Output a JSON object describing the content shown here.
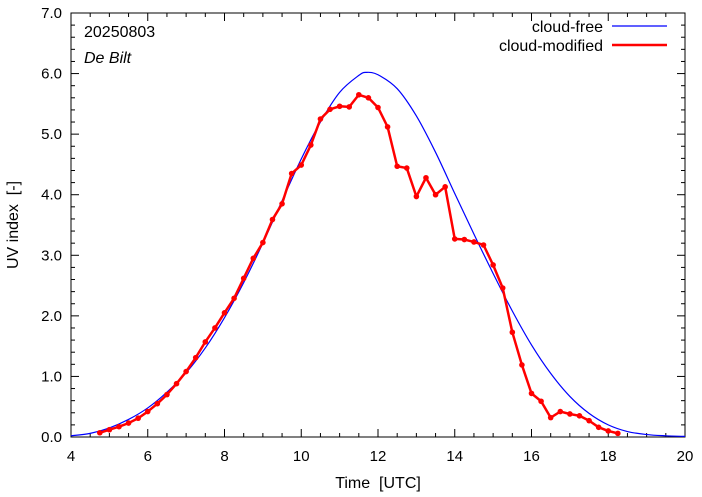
{
  "chart_data": {
    "type": "line",
    "title": "",
    "xlabel": "Time  [UTC]",
    "ylabel": "UV index  [-]",
    "xlim": [
      4,
      20
    ],
    "ylim": [
      0,
      7
    ],
    "xticks": [
      "4",
      "6",
      "8",
      "10",
      "12",
      "14",
      "16",
      "18",
      "20"
    ],
    "yticks": [
      "0.0",
      "1.0",
      "2.0",
      "3.0",
      "4.0",
      "5.0",
      "6.0",
      "7.0"
    ],
    "grid": false,
    "legend_position": "top-right",
    "annotations": {
      "date": "20250803",
      "location": "De Bilt"
    },
    "series": [
      {
        "name": "cloud-free",
        "color": "#0000ff",
        "markers": false,
        "x": [
          4.0,
          4.5,
          5.0,
          5.5,
          6.0,
          6.5,
          7.0,
          7.5,
          8.0,
          8.5,
          9.0,
          9.5,
          10.0,
          10.5,
          11.0,
          11.5,
          11.7,
          12.0,
          12.5,
          13.0,
          13.5,
          14.0,
          14.5,
          15.0,
          15.5,
          16.0,
          16.5,
          17.0,
          17.5,
          18.0,
          18.5,
          19.0,
          19.5,
          20.0
        ],
        "y": [
          0.02,
          0.06,
          0.15,
          0.29,
          0.48,
          0.74,
          1.06,
          1.47,
          1.97,
          2.55,
          3.2,
          3.9,
          4.59,
          5.2,
          5.69,
          5.97,
          6.02,
          5.98,
          5.75,
          5.3,
          4.7,
          4.02,
          3.35,
          2.7,
          2.08,
          1.52,
          1.05,
          0.67,
          0.39,
          0.2,
          0.09,
          0.04,
          0.02,
          0.01
        ]
      },
      {
        "name": "cloud-modified",
        "color": "#ff0000",
        "markers": true,
        "x": [
          4.75,
          5.0,
          5.25,
          5.5,
          5.75,
          6.0,
          6.25,
          6.5,
          6.75,
          7.0,
          7.25,
          7.5,
          7.75,
          8.0,
          8.25,
          8.5,
          8.75,
          9.0,
          9.25,
          9.5,
          9.75,
          10.0,
          10.25,
          10.5,
          10.75,
          11.0,
          11.25,
          11.5,
          11.75,
          12.0,
          12.25,
          12.5,
          12.75,
          13.0,
          13.25,
          13.5,
          13.75,
          14.0,
          14.25,
          14.5,
          14.75,
          15.0,
          15.25,
          15.5,
          15.75,
          16.0,
          16.25,
          16.5,
          16.75,
          17.0,
          17.25,
          17.5,
          17.75,
          18.0,
          18.25
        ],
        "y": [
          0.07,
          0.12,
          0.17,
          0.23,
          0.31,
          0.42,
          0.55,
          0.7,
          0.88,
          1.08,
          1.31,
          1.57,
          1.8,
          2.05,
          2.29,
          2.62,
          2.95,
          3.21,
          3.59,
          3.85,
          4.35,
          4.49,
          4.82,
          5.25,
          5.41,
          5.46,
          5.45,
          5.65,
          5.6,
          5.44,
          5.12,
          4.47,
          4.44,
          3.97,
          4.28,
          4.0,
          4.13,
          3.27,
          3.26,
          3.22,
          3.17,
          2.84,
          2.46,
          1.73,
          1.19,
          0.72,
          0.59,
          0.32,
          0.42,
          0.38,
          0.35,
          0.27,
          0.16,
          0.1,
          0.06
        ]
      }
    ]
  }
}
